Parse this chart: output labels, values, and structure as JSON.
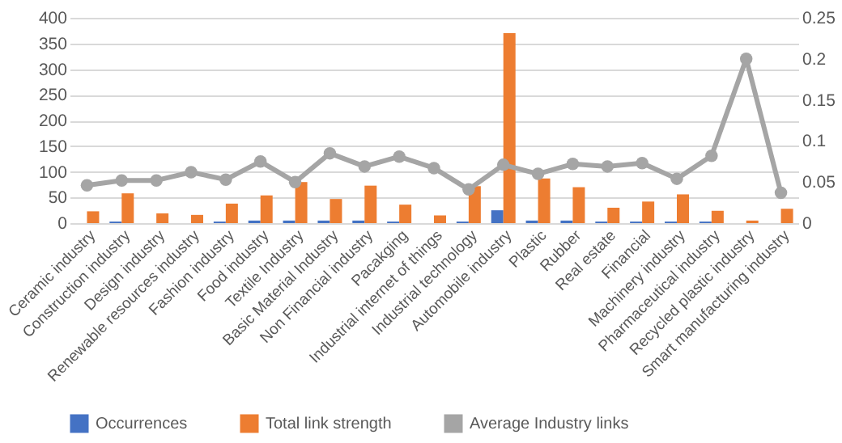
{
  "chart_data": {
    "type": "bar",
    "categories": [
      "Ceramic industry",
      "Construction industry",
      "Design industry",
      "Renewable resources industry",
      "Fashion industry",
      "Food industry",
      "Textile Industry",
      "Basic Material Industry",
      "Non Financial industry",
      "Pacakging",
      "Industrial internet of things",
      "Industrial technology",
      "Automobile industry",
      "Plastic",
      "Rubber",
      "Real estate",
      "Financial",
      "Machinery industry",
      "Pharmaceutical industry",
      "Recycled plastic industry",
      "Smart manufacturing industry"
    ],
    "series": [
      {
        "name": "Occurrences",
        "color": "#4472c4",
        "values": [
          0,
          3,
          0,
          0,
          3,
          5,
          5,
          5,
          5,
          3,
          0,
          3,
          25,
          5,
          5,
          3,
          3,
          3,
          3,
          0,
          0
        ]
      },
      {
        "name": "Total link strength",
        "color": "#ed7d31",
        "values": [
          23,
          58,
          19,
          16,
          38,
          54,
          80,
          47,
          73,
          36,
          15,
          72,
          370,
          87,
          70,
          30,
          42,
          56,
          24,
          5,
          28
        ]
      },
      {
        "name": "Average Industry links",
        "type": "line",
        "axis": "y2",
        "color": "#a5a5a5",
        "values": [
          0.046,
          0.052,
          0.052,
          0.062,
          0.053,
          0.075,
          0.05,
          0.085,
          0.069,
          0.081,
          0.067,
          0.041,
          0.071,
          0.06,
          0.072,
          0.069,
          0.073,
          0.054,
          0.082,
          0.2,
          0.037
        ]
      }
    ],
    "ylim": [
      0,
      400
    ],
    "yticks": [
      0,
      50,
      100,
      150,
      200,
      250,
      300,
      350,
      400
    ],
    "y2lim": [
      0,
      0.25
    ],
    "y2ticks": [
      0,
      0.05,
      0.1,
      0.15,
      0.2,
      0.25
    ],
    "grid": "y",
    "legend": "bottom",
    "marker": "circle",
    "line_style": "solid"
  }
}
